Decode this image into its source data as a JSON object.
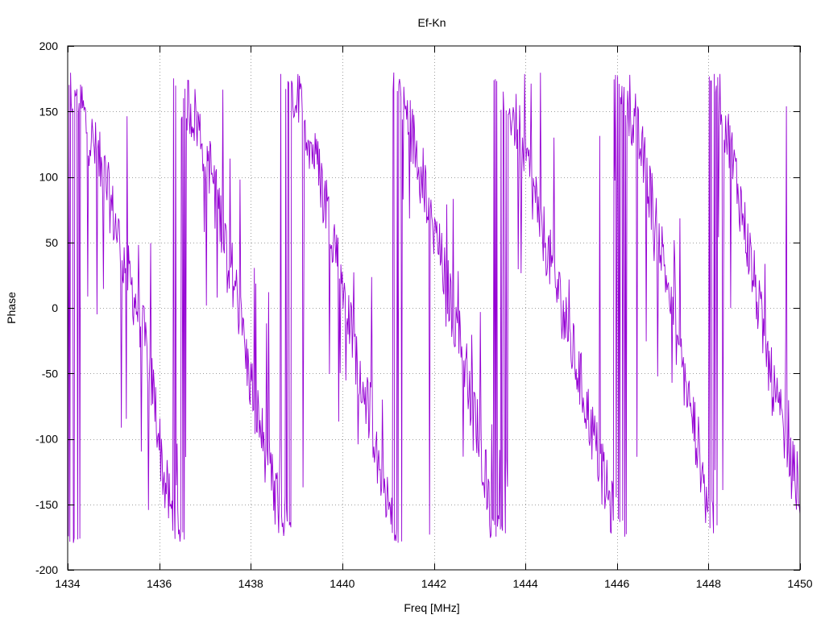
{
  "chart_data": {
    "type": "line",
    "title": "Ef-Kn",
    "xlabel": "Freq [MHz]",
    "ylabel": "Phase",
    "xlim": [
      1434,
      1450
    ],
    "ylim": [
      -200,
      200
    ],
    "xticks": [
      1434,
      1436,
      1438,
      1440,
      1442,
      1444,
      1446,
      1448,
      1450
    ],
    "yticks": [
      -200,
      -150,
      -100,
      -50,
      0,
      50,
      100,
      150,
      200
    ],
    "grid": true,
    "line_color": "#9400d3",
    "series": [
      {
        "points_per_mhz": 64,
        "description": "phase wraps between -180 and 180 degrees with strong scatter",
        "anchors": [
          [
            1434.0,
            160
          ],
          [
            1434.2,
            170
          ],
          [
            1434.4,
            140
          ],
          [
            1434.8,
            100
          ],
          [
            1435.2,
            40
          ],
          [
            1435.6,
            -10
          ],
          [
            1435.9,
            -70
          ],
          [
            1436.1,
            -130
          ],
          [
            1436.3,
            -160
          ],
          [
            1436.5,
            165
          ],
          [
            1436.8,
            145
          ],
          [
            1437.1,
            110
          ],
          [
            1437.4,
            60
          ],
          [
            1437.7,
            10
          ],
          [
            1437.9,
            -40
          ],
          [
            1438.2,
            -90
          ],
          [
            1438.5,
            -140
          ],
          [
            1438.7,
            -165
          ],
          [
            1438.9,
            170
          ],
          [
            1439.2,
            140
          ],
          [
            1439.6,
            90
          ],
          [
            1439.9,
            40
          ],
          [
            1440.2,
            -20
          ],
          [
            1440.6,
            -80
          ],
          [
            1440.9,
            -130
          ],
          [
            1441.1,
            -170
          ],
          [
            1441.3,
            160
          ],
          [
            1441.7,
            110
          ],
          [
            1442.0,
            60
          ],
          [
            1442.4,
            0
          ],
          [
            1442.8,
            -60
          ],
          [
            1443.1,
            -120
          ],
          [
            1443.3,
            -160
          ],
          [
            1443.5,
            170
          ],
          [
            1443.9,
            130
          ],
          [
            1444.3,
            70
          ],
          [
            1444.8,
            0
          ],
          [
            1445.3,
            -70
          ],
          [
            1445.7,
            -130
          ],
          [
            1446.0,
            -170
          ],
          [
            1446.2,
            165
          ],
          [
            1446.6,
            110
          ],
          [
            1447.0,
            40
          ],
          [
            1447.4,
            -40
          ],
          [
            1447.8,
            -110
          ],
          [
            1448.0,
            -160
          ],
          [
            1448.2,
            170
          ],
          [
            1448.6,
            100
          ],
          [
            1449.0,
            20
          ],
          [
            1449.4,
            -60
          ],
          [
            1449.8,
            -120
          ],
          [
            1450.0,
            -140
          ]
        ]
      }
    ]
  }
}
